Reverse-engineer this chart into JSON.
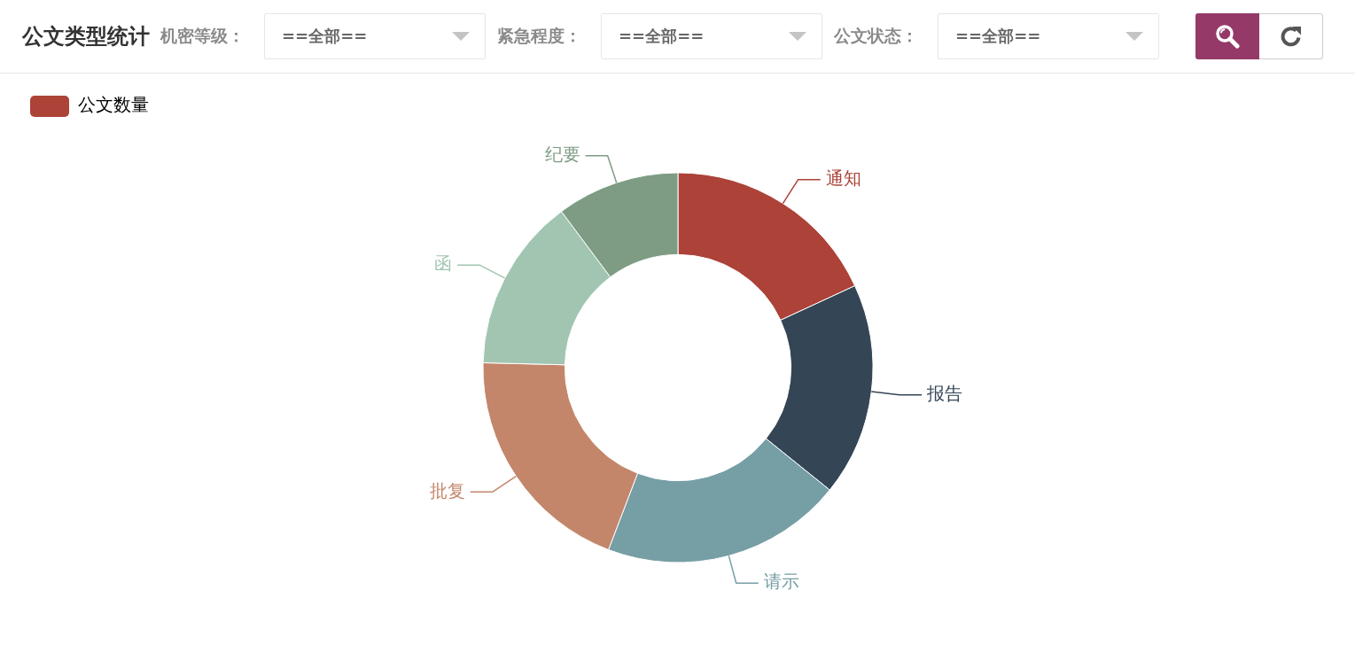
{
  "chart_data": {
    "type": "donut",
    "title": "公文类型统计",
    "categories": [
      "通知",
      "报告",
      "请示",
      "批复",
      "函",
      "纪要"
    ],
    "series": [
      {
        "name": "公文数量",
        "values": [
          18.1,
          17.7,
          20.0,
          19.6,
          14.4,
          10.2
        ],
        "colors": [
          "#ac4238",
          "#344555",
          "#769ea5",
          "#c3866a",
          "#a1c5b0",
          "#7e9c84"
        ]
      }
    ],
    "legend": "top left",
    "annotations": [
      "机密等级：",
      "==全部==",
      "紧急程度：",
      "==全部==",
      "公文状态：",
      "==全部=="
    ]
  }
}
